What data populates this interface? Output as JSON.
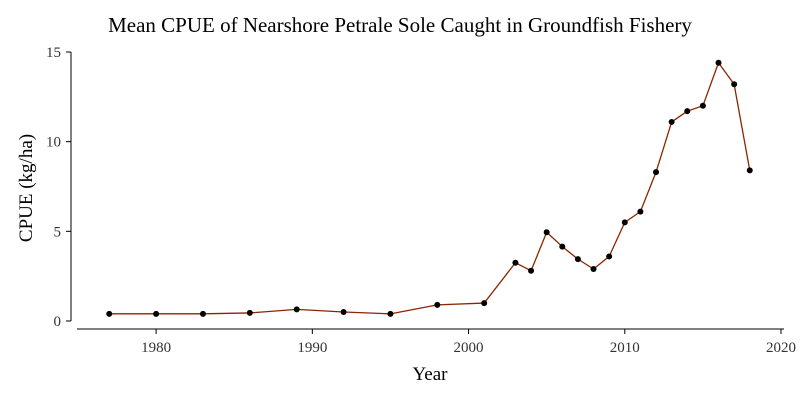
{
  "chart_data": {
    "type": "line",
    "title": "Mean CPUE of Nearshore Petrale Sole Caught in Groundfish Fishery",
    "xlabel": "Year",
    "ylabel": "CPUE (kg/ha)",
    "xlim": [
      1975,
      2020
    ],
    "ylim": [
      0,
      15
    ],
    "xticks": [
      1980,
      1990,
      2000,
      2010,
      2020
    ],
    "xtick_labels": [
      "1980",
      "1990",
      "2000",
      "2010",
      "2020"
    ],
    "yticks": [
      0,
      5,
      10,
      15
    ],
    "ytick_labels": [
      "0",
      "5",
      "10",
      "15"
    ],
    "grid": false,
    "legend": "none",
    "series": [
      {
        "line_color": "#8b2500",
        "marker_color": "#000000",
        "x": [
          1977,
          1980,
          1983,
          1986,
          1989,
          1992,
          1995,
          1998,
          2001,
          2003,
          2004,
          2005,
          2006,
          2007,
          2008,
          2009,
          2010,
          2011,
          2012,
          2013,
          2014,
          2015,
          2016,
          2017,
          2018
        ],
        "y": [
          0.4,
          0.4,
          0.4,
          0.45,
          0.65,
          0.5,
          0.4,
          0.9,
          1.0,
          3.25,
          2.8,
          4.95,
          4.15,
          3.45,
          2.9,
          3.6,
          5.5,
          6.1,
          8.3,
          11.1,
          11.7,
          12.0,
          14.4,
          13.2,
          8.4
        ]
      }
    ]
  }
}
